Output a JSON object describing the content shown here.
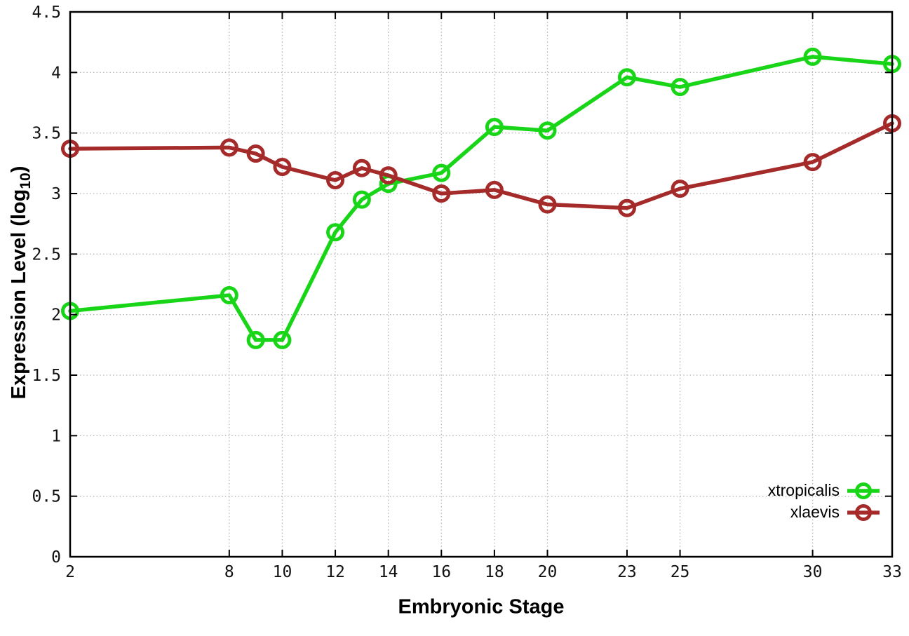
{
  "chart_data": {
    "type": "line",
    "title": "",
    "xlabel": "Embryonic Stage",
    "ylabel": "Expression Level (log10)",
    "ylabel_parts": {
      "pre": "Expression Level (log",
      "sub": "10",
      "post": ")"
    },
    "xlim": [
      2,
      33
    ],
    "ylim": [
      0,
      4.5
    ],
    "grid": true,
    "legend_position": "bottom-right-inside",
    "x_ticks": [
      2,
      8,
      10,
      12,
      14,
      16,
      18,
      20,
      23,
      25,
      30,
      33
    ],
    "y_ticks": [
      0,
      0.5,
      1,
      1.5,
      2,
      2.5,
      3,
      3.5,
      4,
      4.5
    ],
    "y_tick_labels": [
      "0",
      "0.5",
      "1",
      "1.5",
      "2",
      "2.5",
      "3",
      "3.5",
      "4",
      "4.5"
    ],
    "x": [
      2,
      8,
      9,
      10,
      12,
      13,
      14,
      16,
      18,
      20,
      23,
      25,
      30,
      33
    ],
    "series": [
      {
        "name": "xtropicalis",
        "color": "#18d518",
        "values": [
          2.03,
          2.16,
          1.79,
          1.79,
          2.68,
          2.95,
          3.08,
          3.17,
          3.55,
          3.52,
          3.96,
          3.88,
          4.13,
          4.07
        ]
      },
      {
        "name": "xlaevis",
        "color": "#a52a2a",
        "values": [
          3.37,
          3.38,
          3.33,
          3.22,
          3.11,
          3.21,
          3.15,
          3.0,
          3.03,
          2.91,
          2.88,
          3.04,
          3.26,
          3.58
        ]
      }
    ]
  },
  "colors": {
    "background": "#ffffff",
    "axis": "#000000",
    "grid": "#b4b4b4",
    "tick_text": "#111111"
  }
}
